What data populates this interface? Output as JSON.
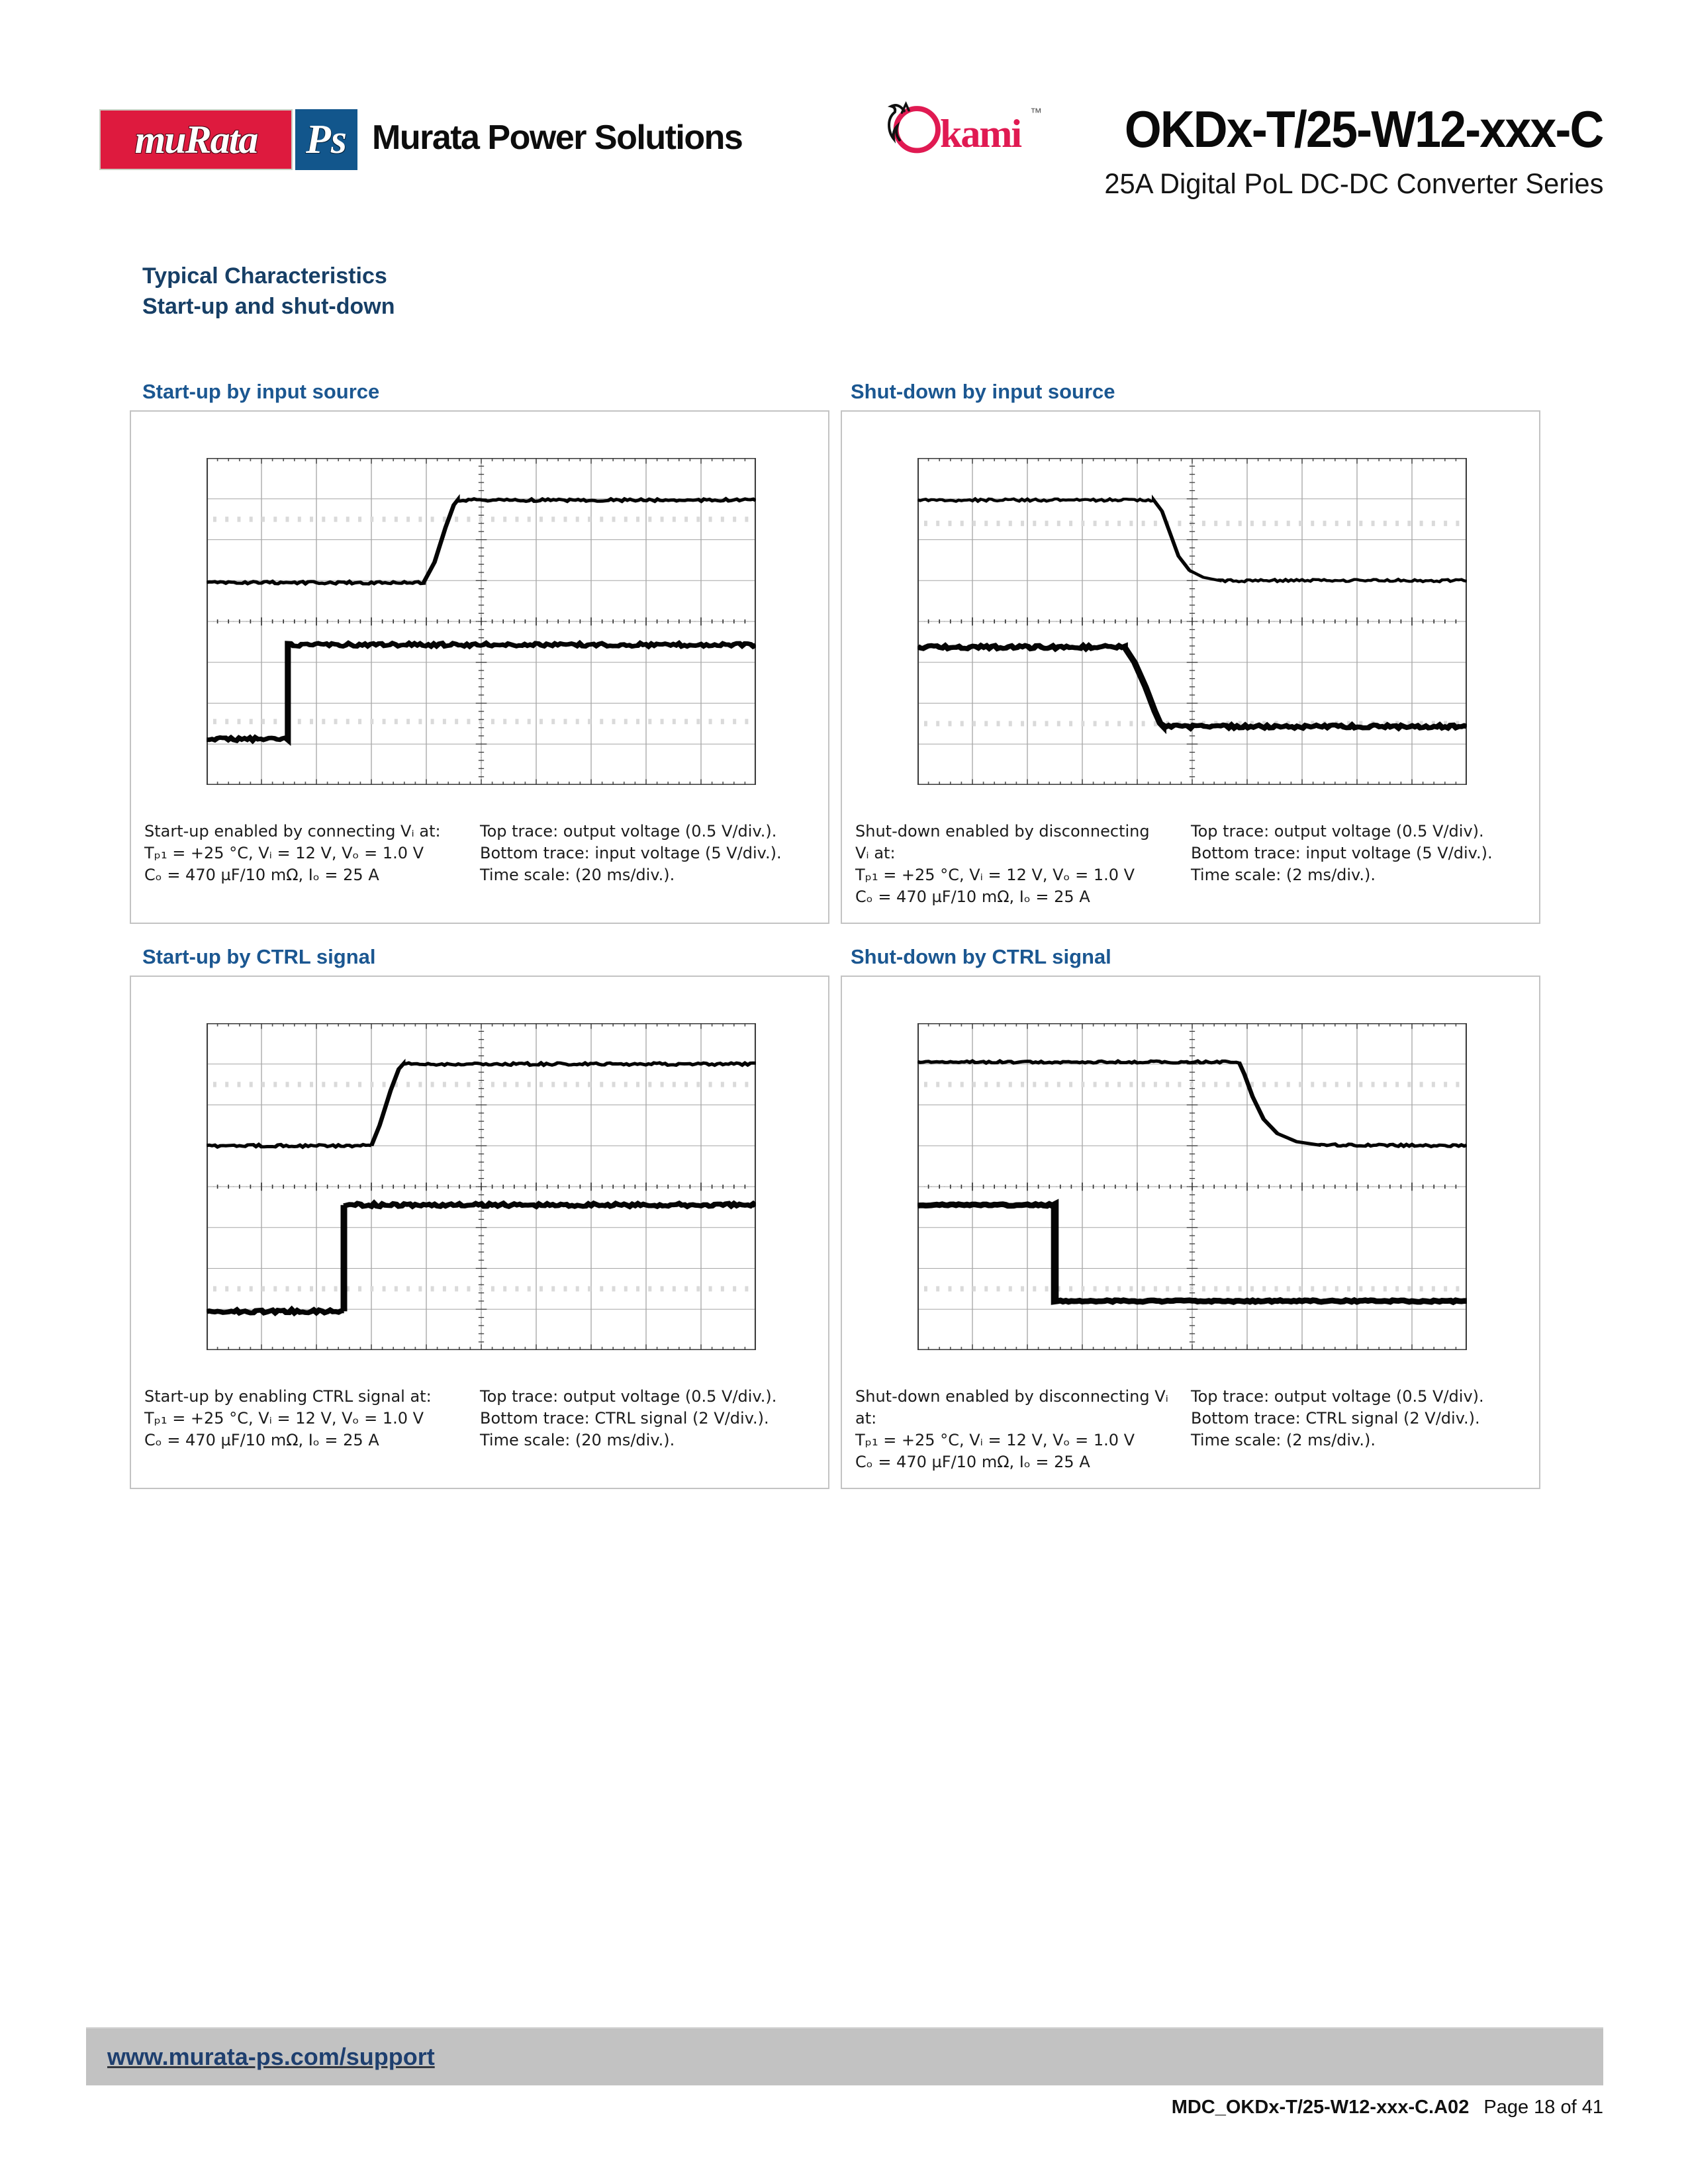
{
  "header": {
    "murata_logo_text": "muRata",
    "ps_logo_text": "Ps",
    "company": "Murata Power Solutions",
    "okami_wordmark": "kami",
    "trademark": "™",
    "product_title": "OKDx-T/25-W12-xxx-C",
    "product_subtitle": "25A Digital PoL DC-DC Converter Series"
  },
  "section": {
    "title": "Typical Characteristics",
    "subtitle": "Start-up and shut-down"
  },
  "colors": {
    "murata_red": "#de1a3e",
    "ps_blue": "#12568c",
    "okami_red": "#e01a52",
    "section_heading_navy": "#173f66",
    "chart_title_blue": "#1b5791",
    "footer_link_navy": "#1e3f6f",
    "footer_bar_gray": "#c2c2c2",
    "trace_black": "#050505"
  },
  "panels": [
    {
      "title": "Start-up by input source",
      "notes_left": [
        "Start-up enabled by connecting Vᵢ at:",
        "Tₚ₁ = +25 °C, Vᵢ = 12 V, Vₒ = 1.0 V",
        "Cₒ = 470 µF/10 mΩ, Iₒ = 25 A"
      ],
      "notes_right": [
        "Top trace: output voltage (0.5 V/div.).",
        "Bottom trace: input voltage (5 V/div.).",
        "Time scale: (20 ms/div.)."
      ]
    },
    {
      "title": "Shut-down by input source",
      "notes_left": [
        "Shut-down enabled by disconnecting",
        "Vᵢ at:",
        "Tₚ₁ = +25 °C, Vᵢ = 12 V, Vₒ = 1.0 V",
        "Cₒ = 470 µF/10 mΩ, Iₒ = 25 A"
      ],
      "notes_right": [
        "Top trace: output voltage (0.5 V/div).",
        "Bottom trace: input voltage (5 V/div.).",
        "Time scale: (2 ms/div.)."
      ]
    },
    {
      "title": "Start-up by CTRL signal",
      "notes_left": [
        "Start-up by enabling CTRL signal at:",
        "Tₚ₁ = +25 °C, Vᵢ = 12 V, Vₒ = 1.0 V",
        "Cₒ = 470 µF/10 mΩ, Iₒ = 25 A"
      ],
      "notes_right": [
        "Top trace: output voltage (0.5 V/div.).",
        "Bottom trace: CTRL signal (2 V/div.).",
        "Time scale: (20 ms/div.)."
      ]
    },
    {
      "title": "Shut-down by CTRL signal",
      "notes_left": [
        "Shut-down enabled by disconnecting Vᵢ",
        "at:",
        "Tₚ₁ = +25 °C, Vᵢ = 12 V, Vₒ = 1.0 V",
        "Cₒ = 470 µF/10 mΩ, Iₒ = 25 A"
      ],
      "notes_right": [
        "Top trace: output voltage (0.5 V/div).",
        "Bottom trace: CTRL signal (2 V/div.).",
        "Time scale: (2 ms/div.)."
      ]
    }
  ],
  "footer": {
    "url": "www.murata-ps.com/support",
    "doc_id": "MDC_OKDx-T/25-W12-xxx-C.A02",
    "page_label": "Page 18 of 41"
  },
  "chart_data": [
    {
      "type": "line",
      "title": "Start-up by input source",
      "grid": {
        "columns": 10,
        "rows": 8
      },
      "x_axis": "time, 20 ms/div",
      "y_axis": "oscilloscope divisions (top = 0)",
      "ref_rows": [
        1.5,
        6.45
      ],
      "series": [
        {
          "name": "output voltage (0.5 V/div)",
          "width": 8,
          "noise": 3,
          "points": [
            [
              0,
              3.05
            ],
            [
              3.95,
              3.05
            ],
            [
              4.15,
              2.55
            ],
            [
              4.35,
              1.7
            ],
            [
              4.5,
              1.15
            ],
            [
              4.57,
              1.03
            ],
            [
              10,
              1.03
            ]
          ]
        },
        {
          "name": "input voltage (5 V/div)",
          "width": 11,
          "noise": 4,
          "points": [
            [
              0,
              6.88
            ],
            [
              1.48,
              6.88
            ],
            [
              1.48,
              4.57
            ],
            [
              10,
              4.57
            ]
          ]
        }
      ]
    },
    {
      "type": "line",
      "title": "Shut-down by input source",
      "grid": {
        "columns": 10,
        "rows": 8
      },
      "x_axis": "time, 2 ms/div",
      "y_axis": "oscilloscope divisions (top = 0)",
      "ref_rows": [
        1.6,
        6.5
      ],
      "series": [
        {
          "name": "output voltage (0.5 V/div)",
          "width": 7,
          "noise": 3,
          "points": [
            [
              0,
              1.03
            ],
            [
              4.3,
              1.03
            ],
            [
              4.45,
              1.3
            ],
            [
              4.6,
              1.85
            ],
            [
              4.75,
              2.4
            ],
            [
              4.95,
              2.75
            ],
            [
              5.2,
              2.92
            ],
            [
              5.5,
              3.0
            ],
            [
              10,
              3.0
            ]
          ]
        },
        {
          "name": "input voltage (5 V/div)",
          "width": 12,
          "noise": 4,
          "points": [
            [
              0,
              4.63
            ],
            [
              3.77,
              4.63
            ],
            [
              3.95,
              5.0
            ],
            [
              4.15,
              5.6
            ],
            [
              4.32,
              6.2
            ],
            [
              4.42,
              6.5
            ],
            [
              4.47,
              6.57
            ],
            [
              10,
              6.57
            ]
          ]
        }
      ]
    },
    {
      "type": "line",
      "title": "Start-up by CTRL signal",
      "grid": {
        "columns": 10,
        "rows": 8
      },
      "x_axis": "time, 20 ms/div",
      "y_axis": "oscilloscope divisions (top = 0)",
      "ref_rows": [
        1.5,
        6.5
      ],
      "series": [
        {
          "name": "output voltage (0.5 V/div)",
          "width": 8,
          "noise": 3,
          "points": [
            [
              0,
              3.0
            ],
            [
              3.0,
              3.0
            ],
            [
              3.15,
              2.5
            ],
            [
              3.35,
              1.65
            ],
            [
              3.5,
              1.12
            ],
            [
              3.58,
              1.0
            ],
            [
              10,
              1.0
            ]
          ]
        },
        {
          "name": "CTRL signal (2 V/div)",
          "width": 12,
          "noise": 4,
          "points": [
            [
              0,
              7.05
            ],
            [
              2.5,
              7.05
            ],
            [
              2.5,
              4.45
            ],
            [
              10,
              4.45
            ]
          ]
        }
      ]
    },
    {
      "type": "line",
      "title": "Shut-down by CTRL signal",
      "grid": {
        "columns": 10,
        "rows": 8
      },
      "x_axis": "time, 2 ms/div",
      "y_axis": "oscilloscope divisions (top = 0)",
      "ref_rows": [
        1.5,
        6.5
      ],
      "series": [
        {
          "name": "output voltage (0.5 V/div)",
          "width": 8,
          "noise": 2.5,
          "points": [
            [
              0,
              0.95
            ],
            [
              5.85,
              0.95
            ],
            [
              5.95,
              1.25
            ],
            [
              6.1,
              1.8
            ],
            [
              6.3,
              2.35
            ],
            [
              6.55,
              2.7
            ],
            [
              6.9,
              2.9
            ],
            [
              7.3,
              2.98
            ],
            [
              10,
              3.0
            ]
          ]
        },
        {
          "name": "CTRL signal (2 V/div)",
          "width": 14,
          "noise": 2,
          "points": [
            [
              0,
              4.45
            ],
            [
              2.5,
              4.45
            ],
            [
              2.5,
              6.8
            ],
            [
              10,
              6.8
            ]
          ]
        }
      ]
    }
  ]
}
